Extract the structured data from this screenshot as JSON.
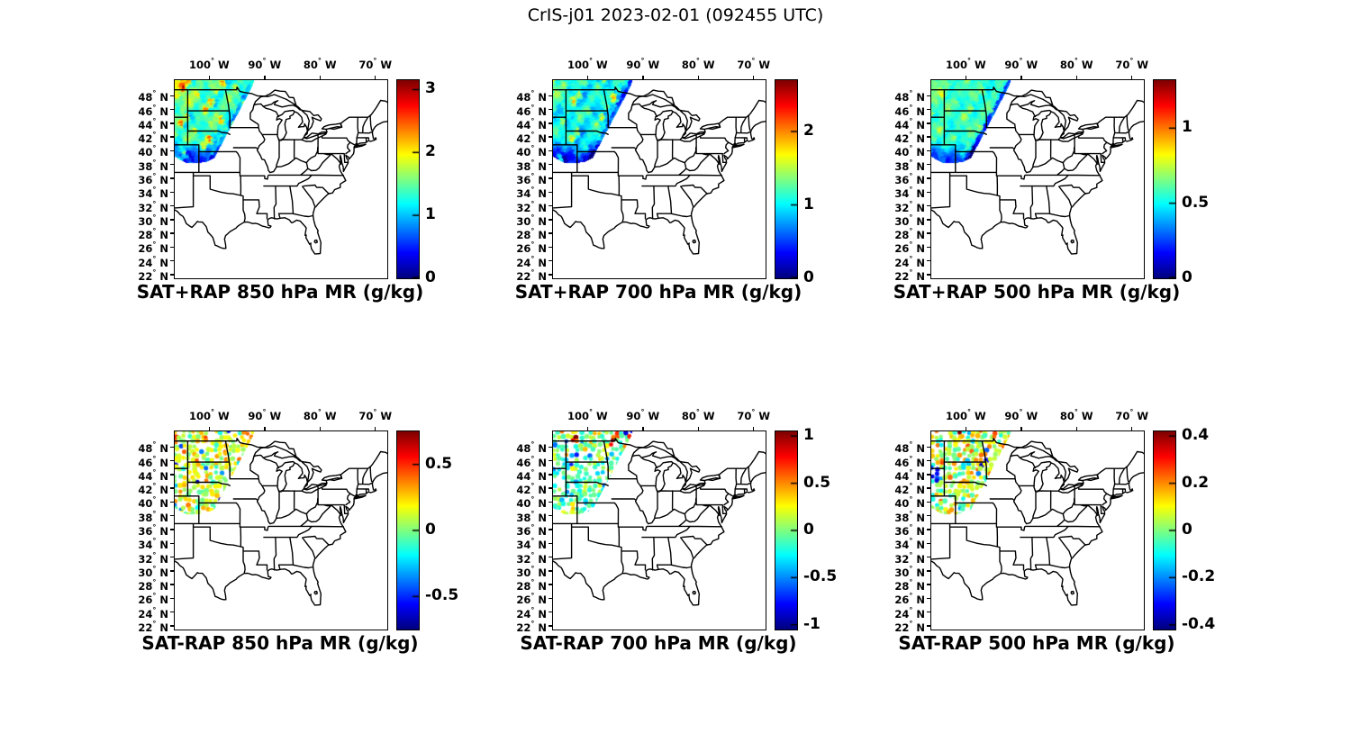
{
  "suptitle": "CrIS-j01 2023-02-01 (092455 UTC)",
  "axes": {
    "x_tick_labels": [
      "100",
      "90",
      "80",
      "70"
    ],
    "x_tick_suffix": "W",
    "y_tick_labels": [
      "48",
      "46",
      "44",
      "42",
      "40",
      "38",
      "36",
      "34",
      "32",
      "30",
      "28",
      "26",
      "24",
      "22"
    ],
    "y_tick_suffix": "N",
    "degree_symbol": "°",
    "lon_range_degW": [
      106.4,
      68.0
    ],
    "lat_range_degN": [
      21.6,
      50.4
    ]
  },
  "chart_data": {
    "type": "heatmap",
    "subtype": "geographic-swath-grid",
    "colormap": "jet",
    "region": "eastern CONUS with state boundaries",
    "swath_region": "CrIS overpass over northern Great Plains (MT, WY, ND, SD, NE, western MN)",
    "swath_polygon_lonW_latN": [
      [
        106.8,
        50.6
      ],
      [
        92.0,
        50.6
      ],
      [
        92.3,
        49.6
      ],
      [
        99.2,
        39.1
      ],
      [
        100.6,
        38.55
      ],
      [
        102.5,
        38.3
      ],
      [
        104.3,
        38.35
      ],
      [
        105.6,
        38.9
      ],
      [
        106.8,
        39.5
      ]
    ],
    "grid": {
      "rows": 2,
      "cols": 3
    },
    "panels": [
      {
        "title": "SAT+RAP 850 hPa MR (g/kg)",
        "quantity": "retrieved + model mixing ratio",
        "level_hPa": 850,
        "units": "g/kg",
        "row": 0,
        "col": 0,
        "colorbar": {
          "vmin": 0,
          "vmax": 3.15,
          "tick_values": [
            0,
            1,
            2,
            3
          ],
          "tick_labels": [
            "0",
            "1",
            "2",
            "3"
          ]
        },
        "field": {
          "style": "filled",
          "seed": 1,
          "base": 1.35,
          "amp": 0.38,
          "hot": 0.95,
          "dip": 0.8,
          "edge": 0.5,
          "nw": 0.5,
          "speckle": 0.05
        },
        "summary": "Continuous swath, mostly 1.0-1.6 g/kg (cyan-green); orange streaks ~2.3 over MT/ND; ~0.5-0.8 (blue) along south edge and along NE diagonal edge"
      },
      {
        "title": "SAT+RAP 700 hPa MR (g/kg)",
        "quantity": "retrieved + model mixing ratio",
        "level_hPa": 700,
        "units": "g/kg",
        "row": 0,
        "col": 1,
        "colorbar": {
          "vmin": 0,
          "vmax": 2.7,
          "tick_values": [
            0,
            1,
            2
          ],
          "tick_labels": [
            "0",
            "1",
            "2"
          ]
        },
        "field": {
          "style": "filled",
          "seed": 2,
          "base": 1.0,
          "amp": 0.3,
          "hot": 0.6,
          "dip": 0.65,
          "edge": 0.45,
          "nw": 0.25,
          "speckle": 0.05
        },
        "summary": "Continuous swath, mostly 0.8-1.2 g/kg (blue-cyan); green-yellow patches ~1.7 over SD/MT; darker blue south edge"
      },
      {
        "title": "SAT+RAP 500 hPa MR (g/kg)",
        "quantity": "retrieved + model mixing ratio",
        "level_hPa": 500,
        "units": "g/kg",
        "row": 0,
        "col": 2,
        "colorbar": {
          "vmin": 0,
          "vmax": 1.32,
          "tick_values": [
            0,
            0.5,
            1
          ],
          "tick_labels": [
            "0",
            "0.5",
            "1"
          ]
        },
        "field": {
          "style": "filled",
          "seed": 3,
          "base": 0.55,
          "amp": 0.1,
          "hot": 0.18,
          "dip": 0.3,
          "edge": 0.3,
          "nw": 0.1,
          "speckle": 0.05
        },
        "summary": "Continuous swath, mostly 0.5-0.75 g/kg (cyan); slight green patches ~0.8; blue ~0.25 along south edge"
      },
      {
        "title": "SAT-RAP 850 hPa MR (g/kg)",
        "quantity": "retrieval minus model difference",
        "level_hPa": 850,
        "units": "g/kg",
        "row": 1,
        "col": 0,
        "colorbar": {
          "vmin": -0.75,
          "vmax": 0.75,
          "tick_values": [
            -0.5,
            0,
            0.5
          ],
          "tick_labels": [
            "-0.5",
            "0",
            "0.5"
          ]
        },
        "field": {
          "style": "dots",
          "seed": 4,
          "base": 0.12,
          "amp": 0.2,
          "hot": 0.3,
          "hotLatMin": 44.5,
          "out": 0.55,
          "outP": 0.06,
          "speckle": 0.22
        },
        "summary": "Scattered dots near 0 to +0.2 (green-yellow); orange +0.3 to +0.45 patches over MT/ND; scattered dark-blue dots ~-0.4 in north"
      },
      {
        "title": "SAT-RAP 700 hPa MR (g/kg)",
        "quantity": "retrieval minus model difference",
        "level_hPa": 700,
        "units": "g/kg",
        "row": 1,
        "col": 1,
        "colorbar": {
          "vmin": -1.05,
          "vmax": 1.05,
          "tick_values": [
            -1,
            -0.5,
            0,
            0.5,
            1
          ],
          "tick_labels": [
            "-1",
            "-0.5",
            "0",
            "0.5",
            "1"
          ]
        },
        "field": {
          "style": "dots",
          "seed": 5,
          "base": -0.08,
          "amp": 0.28,
          "hot": 0.3,
          "hotLatMin": 46,
          "out": 0.55,
          "outP": 0.09,
          "streak": 1.3,
          "speckle": 0.22
        },
        "summary": "Scattered dots mostly -0.3 to +0.2 (blue-cyan-green); clusters of dark-blue dots ~-0.6 over MT/SD; orange-red streak up to ~+1 near ND/MN border 47-49N"
      },
      {
        "title": "SAT-RAP 500 hPa MR (g/kg)",
        "quantity": "retrieval minus model difference",
        "level_hPa": 500,
        "units": "g/kg",
        "row": 1,
        "col": 2,
        "colorbar": {
          "vmin": -0.42,
          "vmax": 0.42,
          "tick_values": [
            -0.4,
            -0.2,
            0,
            0.2,
            0.4
          ],
          "tick_labels": [
            "-0.4",
            "-0.2",
            "0",
            "0.2",
            "0.4"
          ]
        },
        "field": {
          "style": "dots",
          "seed": 6,
          "base": 0.05,
          "amp": 0.1,
          "hot": 0.2,
          "hotLatMin": 45.5,
          "out": 0.25,
          "outP": 0.04,
          "blob": 0.55,
          "speckle": 0.3
        },
        "summary": "Scattered dots near 0 to +0.1 (green); orange-red band +0.2 to +0.4 along 47-49N; dark-blue cluster ~-0.35 near 106W 44N"
      }
    ]
  }
}
